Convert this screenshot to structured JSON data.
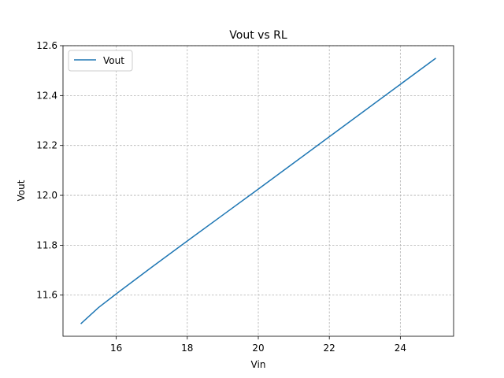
{
  "chart_data": {
    "type": "line",
    "title": "Vout vs RL",
    "xlabel": "Vin",
    "ylabel": "Vout",
    "xlim": [
      14.5,
      25.5
    ],
    "ylim": [
      11.435,
      12.6
    ],
    "xticks": [
      16,
      18,
      20,
      22,
      24
    ],
    "yticks": [
      11.6,
      11.8,
      12.0,
      12.2,
      12.4,
      12.6
    ],
    "xtick_labels": [
      "16",
      "18",
      "20",
      "22",
      "24"
    ],
    "ytick_labels": [
      "11.6",
      "11.8",
      "12.0",
      "12.2",
      "12.4",
      "12.6"
    ],
    "grid": true,
    "legend_position": "upper-left",
    "series": [
      {
        "name": "Vout",
        "color": "#1f77b4",
        "x": [
          15,
          15.5,
          16,
          17,
          18,
          19,
          20,
          21,
          22,
          23,
          24,
          25
        ],
        "y": [
          11.485,
          11.55,
          11.605,
          11.712,
          11.817,
          11.921,
          12.025,
          12.13,
          12.235,
          12.34,
          12.445,
          12.55
        ]
      }
    ]
  }
}
